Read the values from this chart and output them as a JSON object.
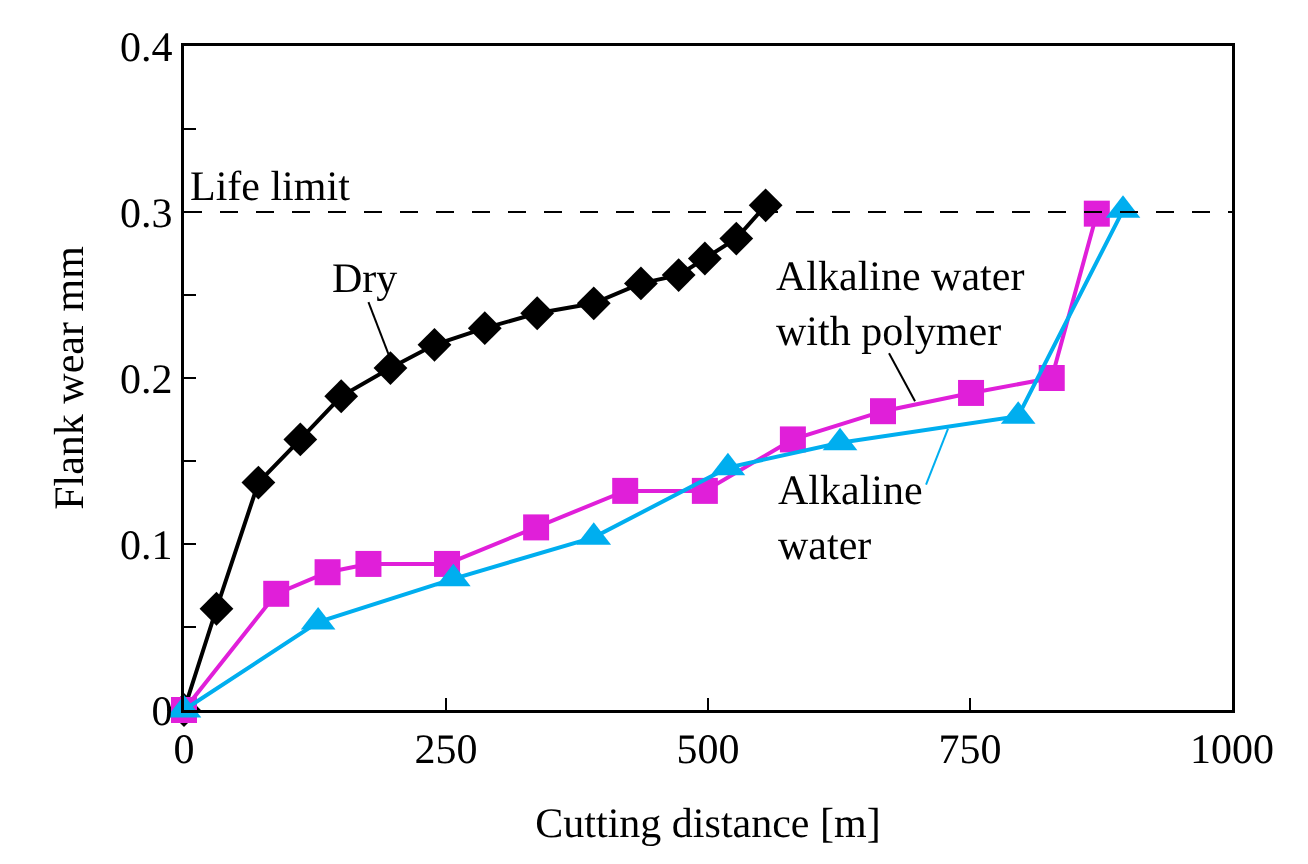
{
  "chart_data": {
    "type": "line",
    "xlabel": "Cutting distance [m]",
    "ylabel": "Flank wear mm",
    "xlim": [
      0,
      1000
    ],
    "xticks": [
      0,
      250,
      500,
      750,
      1000
    ],
    "ylim": [
      0,
      0.4
    ],
    "yticks": [
      0,
      {
        "value": 0.05,
        "label": null
      },
      0.1,
      {
        "value": 0.15,
        "label": null
      },
      0.2,
      {
        "value": 0.25,
        "label": null
      },
      0.3,
      {
        "value": 0.35,
        "label": null
      },
      0.4
    ],
    "grid": false,
    "legend": false,
    "line_style": "solid",
    "ref_lines": [
      {
        "axis": "y",
        "value": 0.3,
        "label": "Life limit",
        "line_style": "dashed",
        "color": "#000000"
      }
    ],
    "series": [
      {
        "name": "Dry",
        "color": "#000000",
        "marker": "diamond",
        "x": [
          0,
          31,
          71,
          111,
          150,
          197,
          239,
          287,
          337,
          391,
          436,
          472,
          497,
          527,
          555
        ],
        "values": [
          0,
          0.061,
          0.137,
          0.163,
          0.189,
          0.206,
          0.22,
          0.23,
          0.239,
          0.245,
          0.257,
          0.262,
          0.272,
          0.284,
          0.304
        ]
      },
      {
        "name": "Alkaline water with polymer",
        "color": "#e01fd9",
        "marker": "square",
        "x": [
          0,
          88,
          137,
          176,
          251,
          336,
          421,
          497,
          581,
          667,
          751,
          828,
          871
        ],
        "values": [
          0,
          0.07,
          0.083,
          0.088,
          0.088,
          0.11,
          0.132,
          0.132,
          0.163,
          0.18,
          0.191,
          0.2,
          0.299
        ]
      },
      {
        "name": "Alkaline water",
        "color": "#00aeef",
        "marker": "triangle",
        "x": [
          0,
          128,
          257,
          391,
          519,
          626,
          796,
          896
        ],
        "values": [
          0,
          0.053,
          0.079,
          0.104,
          0.146,
          0.161,
          0.177,
          0.301
        ]
      }
    ]
  }
}
